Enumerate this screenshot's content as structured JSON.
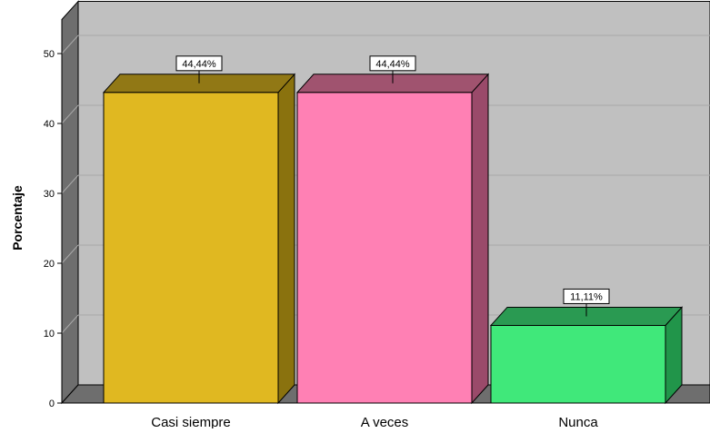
{
  "chart_data": {
    "type": "bar",
    "title": "",
    "xlabel": "",
    "ylabel": "Porcentaje",
    "ylim": [
      0,
      55
    ],
    "yticks": [
      0,
      10,
      20,
      30,
      40,
      50
    ],
    "grid": true,
    "categories": [
      "Casi siempre",
      "A veces",
      "Nunca"
    ],
    "values": [
      44.44,
      44.44,
      11.11
    ],
    "value_labels": [
      "44,44%",
      "44,44%",
      "11,11%"
    ],
    "colors": [
      {
        "front": "#e0b821",
        "side": "#8a720e",
        "top": "#917815"
      },
      {
        "front": "#ff80b4",
        "side": "#9a4a6a",
        "top": "#a0536f"
      },
      {
        "front": "#40e87a",
        "side": "#21954a",
        "top": "#2a9a52"
      }
    ],
    "plot_colors": {
      "wall": "#c0c0c0",
      "left_wall": "#6e6e6e",
      "floor": "#6e6e6e",
      "grid": "#a9a9a9"
    }
  }
}
